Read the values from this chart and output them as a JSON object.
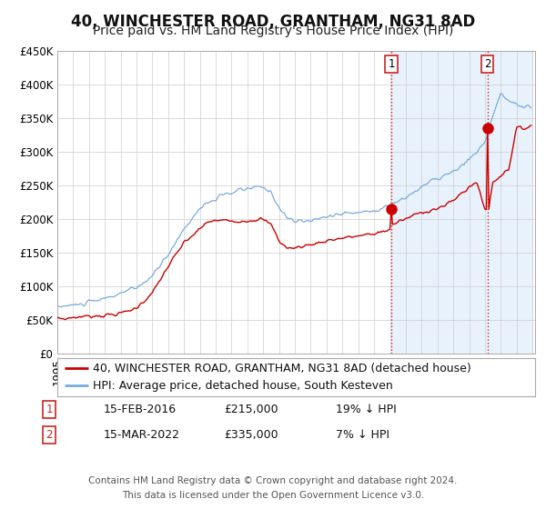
{
  "title": "40, WINCHESTER ROAD, GRANTHAM, NG31 8AD",
  "subtitle": "Price paid vs. HM Land Registry's House Price Index (HPI)",
  "ylim": [
    0,
    450000
  ],
  "yticks": [
    0,
    50000,
    100000,
    150000,
    200000,
    250000,
    300000,
    350000,
    400000,
    450000
  ],
  "ytick_labels": [
    "£0",
    "£50K",
    "£100K",
    "£150K",
    "£200K",
    "£250K",
    "£300K",
    "£350K",
    "£400K",
    "£450K"
  ],
  "sale1_date": "15-FEB-2016",
  "sale1_price": 215000,
  "sale1_hpi_diff": "19% ↓ HPI",
  "sale2_date": "15-MAR-2022",
  "sale2_price": 335000,
  "sale2_hpi_diff": "7% ↓ HPI",
  "legend1": "40, WINCHESTER ROAD, GRANTHAM, NG31 8AD (detached house)",
  "legend2": "HPI: Average price, detached house, South Kesteven",
  "red_line_color": "#cc0000",
  "blue_line_color": "#7aaadd",
  "shade_color": "#e8f2fc",
  "grid_color": "#cccccc",
  "background_color": "#ffffff",
  "footer1": "Contains HM Land Registry data © Crown copyright and database right 2024.",
  "footer2": "This data is licensed under the Open Government Licence v3.0.",
  "title_fontsize": 12,
  "subtitle_fontsize": 10,
  "tick_fontsize": 8.5,
  "legend_fontsize": 9,
  "footer_fontsize": 7.5
}
